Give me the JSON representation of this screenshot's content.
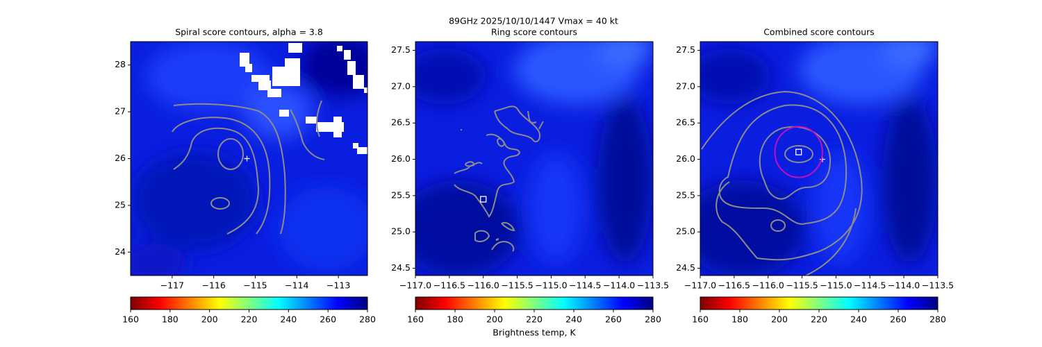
{
  "title": "89GHz  2025/10/10/1447    Vmax = 40 kt",
  "chart_data": [
    {
      "type": "contour",
      "title": "Spiral score contours, alpha =  3.8",
      "xlim": [
        -118.0,
        -112.3
      ],
      "ylim": [
        23.5,
        28.5
      ],
      "xticks": [
        {
          "value": -117,
          "label": "−117"
        },
        {
          "value": -116,
          "label": "−116"
        },
        {
          "value": -115,
          "label": "−115"
        },
        {
          "value": -114,
          "label": "−114"
        },
        {
          "value": -113,
          "label": "−113"
        }
      ],
      "yticks": [
        24,
        25,
        26,
        27,
        28
      ],
      "markers": [
        {
          "shape": "plus",
          "x": -115.2,
          "y": 26.0,
          "color": "#ffffff"
        }
      ],
      "colorbar": {
        "colormap": "jet_r",
        "clim": [
          160,
          280
        ],
        "ticks": [
          160,
          180,
          200,
          220,
          240,
          260,
          280
        ]
      }
    },
    {
      "type": "contour",
      "title": "Ring score contours",
      "xlim": [
        -117.0,
        -113.5
      ],
      "ylim": [
        24.4,
        27.62
      ],
      "xticks": [
        {
          "value": -117.0,
          "label": "−117.0"
        },
        {
          "value": -116.5,
          "label": "−116.5"
        },
        {
          "value": -116.0,
          "label": "−116.0"
        },
        {
          "value": -115.5,
          "label": "−115.5"
        },
        {
          "value": -115.0,
          "label": "−115.0"
        },
        {
          "value": -114.5,
          "label": "−114.5"
        },
        {
          "value": -114.0,
          "label": "−114.0"
        },
        {
          "value": -113.5,
          "label": "−113.5"
        }
      ],
      "yticks": [
        24.5,
        {
          "value": 25,
          "label": "25.0"
        },
        25.5,
        {
          "value": 26,
          "label": "26.0"
        },
        26.5,
        {
          "value": 27,
          "label": "27.0"
        },
        27.5
      ],
      "markers": [
        {
          "shape": "square",
          "x": -116.0,
          "y": 25.45,
          "color": "#ffffff"
        }
      ],
      "colorbar": {
        "colormap": "jet_r",
        "clim": [
          160,
          280
        ],
        "ticks": [
          160,
          180,
          200,
          220,
          240,
          260,
          280
        ],
        "label": "Brightness temp, K"
      }
    },
    {
      "type": "contour",
      "title": "Combined score contours",
      "xlim": [
        -117.0,
        -113.5
      ],
      "ylim": [
        24.4,
        27.62
      ],
      "xticks": [
        {
          "value": -117.0,
          "label": "−117.0"
        },
        {
          "value": -116.5,
          "label": "−116.5"
        },
        {
          "value": -116.0,
          "label": "−116.0"
        },
        {
          "value": -115.5,
          "label": "−115.5"
        },
        {
          "value": -115.0,
          "label": "−115.0"
        },
        {
          "value": -114.5,
          "label": "−114.5"
        },
        {
          "value": -114.0,
          "label": "−114.0"
        },
        {
          "value": -113.5,
          "label": "−113.5"
        }
      ],
      "yticks": [
        24.5,
        {
          "value": 25,
          "label": "25.0"
        },
        25.5,
        {
          "value": 26,
          "label": "26.0"
        },
        26.5,
        {
          "value": 27,
          "label": "27.0"
        },
        27.5
      ],
      "markers": [
        {
          "shape": "square",
          "x": -115.55,
          "y": 26.1,
          "color": "#ffffff"
        },
        {
          "shape": "plus",
          "x": -115.2,
          "y": 26.0,
          "color": "#ffffff"
        },
        {
          "shape": "circle",
          "x": -115.55,
          "y": 26.1,
          "r": 0.35,
          "color": "#c010c0"
        }
      ],
      "colorbar": {
        "colormap": "jet_r",
        "clim": [
          160,
          280
        ],
        "ticks": [
          160,
          180,
          200,
          220,
          240,
          260,
          280
        ]
      }
    }
  ]
}
